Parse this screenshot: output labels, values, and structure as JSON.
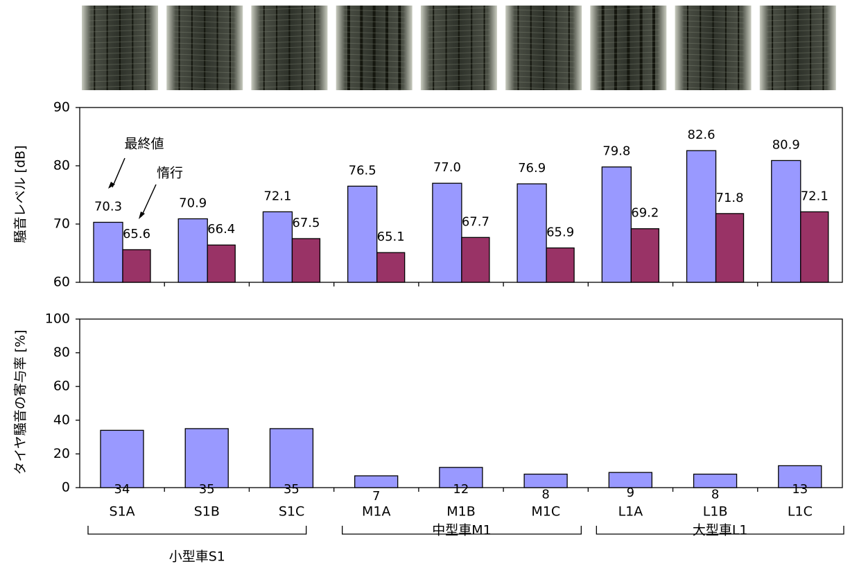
{
  "chart_data": [
    {
      "type": "grouped-bar",
      "y_label": "騒音レベル [dB]",
      "series": [
        {
          "name": "最終値",
          "color": "#9999ff",
          "values": [
            70.3,
            70.9,
            72.1,
            76.5,
            77.0,
            76.9,
            79.8,
            82.6,
            80.9
          ],
          "value_labels": [
            "70.3",
            "70.9",
            "72.1",
            "76.5",
            "77.0",
            "76.9",
            "79.8",
            "82.6",
            "80.9"
          ]
        },
        {
          "name": "惰行",
          "color": "#993366",
          "values": [
            65.6,
            66.4,
            67.5,
            65.1,
            67.7,
            65.9,
            69.2,
            71.8,
            72.1
          ],
          "value_labels": [
            "65.6",
            "66.4",
            "67.5",
            "65.1",
            "67.7",
            "65.9",
            "69.2",
            "71.8",
            "72.1"
          ]
        }
      ],
      "ylim": [
        60,
        90
      ],
      "yticks": [
        60,
        70,
        80,
        90
      ]
    },
    {
      "type": "bar",
      "y_label": "タイヤ騒音の寄与率 [%]",
      "categories": [
        "S1A",
        "S1B",
        "S1C",
        "M1A",
        "M1B",
        "M1C",
        "L1A",
        "L1B",
        "L1C"
      ],
      "groups": [
        "小型車S1",
        "中型車M1",
        "大型車L1"
      ],
      "values": [
        34,
        35,
        35,
        7,
        12,
        8,
        9,
        8,
        13
      ],
      "color": "#9999ff",
      "ylim": [
        0,
        100
      ],
      "yticks": [
        0,
        20,
        40,
        60,
        80,
        100
      ]
    }
  ]
}
